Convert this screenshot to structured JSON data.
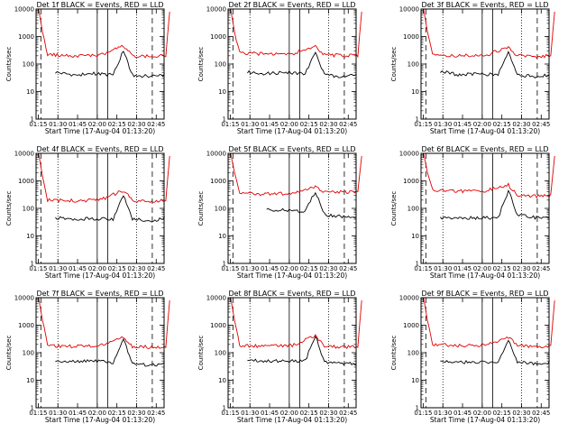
{
  "chart_data": {
    "type": "line",
    "layout": "3x3 panels",
    "shared": {
      "xlabel": "Start Time (17-Aug-04 01:13:20)",
      "ylabel": "Counts/sec",
      "x_ticks": [
        "01:15",
        "01:30",
        "01:45",
        "02:00",
        "02:15",
        "02:30",
        "02:45"
      ],
      "x_range": [
        "01:13:20",
        "02:51:00"
      ],
      "y_ticks": [
        "1",
        "10",
        "100",
        "1000",
        "10000"
      ],
      "y_range": [
        1,
        10000
      ],
      "y_scale": "log",
      "colors": {
        "events": "#000000",
        "lld": "#e00000"
      },
      "dotted_lines_at": [
        "01:30",
        "02:30"
      ],
      "dashed_lines_at": [
        "01:17",
        "02:42"
      ],
      "solid_lines_at": [
        "02:00",
        "02:08"
      ]
    },
    "panels": [
      {
        "title": "Det 1f BLACK = Events, RED = LLD",
        "series": [
          {
            "name": "Events",
            "values": [
              [
                1.5,
                50
              ],
              [
                3,
                40
              ],
              [
                4.5,
                45
              ],
              [
                6,
                40
              ],
              [
                6.8,
                300
              ],
              [
                7.5,
                40
              ],
              [
                9,
                35
              ],
              [
                10,
                40
              ]
            ]
          },
          {
            "name": "LLD",
            "values": [
              [
                0.2,
                10000
              ],
              [
                0.5,
                1500
              ],
              [
                0.9,
                220
              ],
              [
                3,
                200
              ],
              [
                5,
                210
              ],
              [
                6.8,
                450
              ],
              [
                7.5,
                200
              ],
              [
                9,
                190
              ],
              [
                10.1,
                200
              ],
              [
                10.4,
                8000
              ]
            ]
          }
        ]
      },
      {
        "title": "Det 2f BLACK = Events, RED = LLD",
        "series": [
          {
            "name": "Events",
            "values": [
              [
                1.5,
                50
              ],
              [
                3,
                45
              ],
              [
                4.5,
                50
              ],
              [
                6,
                45
              ],
              [
                6.8,
                250
              ],
              [
                7.5,
                40
              ],
              [
                9,
                35
              ],
              [
                10,
                40
              ]
            ]
          },
          {
            "name": "LLD",
            "values": [
              [
                0.2,
                10000
              ],
              [
                0.5,
                1500
              ],
              [
                0.9,
                250
              ],
              [
                3,
                230
              ],
              [
                5,
                240
              ],
              [
                6.8,
                420
              ],
              [
                7.5,
                220
              ],
              [
                9,
                200
              ],
              [
                10.1,
                210
              ],
              [
                10.4,
                8000
              ]
            ]
          }
        ]
      },
      {
        "title": "Det 3f BLACK = Events, RED = LLD",
        "series": [
          {
            "name": "Events",
            "values": [
              [
                1.5,
                55
              ],
              [
                3,
                40
              ],
              [
                4.5,
                45
              ],
              [
                6,
                40
              ],
              [
                6.8,
                250
              ],
              [
                7.5,
                40
              ],
              [
                9,
                35
              ],
              [
                10,
                40
              ]
            ]
          },
          {
            "name": "LLD",
            "values": [
              [
                0.2,
                10000
              ],
              [
                0.5,
                1500
              ],
              [
                0.9,
                220
              ],
              [
                3,
                200
              ],
              [
                5,
                210
              ],
              [
                6.8,
                400
              ],
              [
                7.5,
                200
              ],
              [
                9,
                190
              ],
              [
                10.1,
                200
              ],
              [
                10.4,
                8000
              ]
            ]
          }
        ]
      },
      {
        "title": "Det 4f BLACK = Events, RED = LLD",
        "series": [
          {
            "name": "Events",
            "values": [
              [
                1.5,
                45
              ],
              [
                3,
                40
              ],
              [
                4.5,
                42
              ],
              [
                6,
                40
              ],
              [
                6.8,
                300
              ],
              [
                7.5,
                40
              ],
              [
                9,
                35
              ],
              [
                10,
                45
              ]
            ]
          },
          {
            "name": "LLD",
            "values": [
              [
                0.2,
                10000
              ],
              [
                0.5,
                1500
              ],
              [
                0.9,
                200
              ],
              [
                3,
                190
              ],
              [
                5,
                200
              ],
              [
                6.8,
                450
              ],
              [
                7.5,
                200
              ],
              [
                9,
                180
              ],
              [
                10.1,
                190
              ],
              [
                10.4,
                8000
              ]
            ]
          }
        ]
      },
      {
        "title": "Det 5f BLACK = Events, RED = LLD",
        "series": [
          {
            "name": "Events",
            "values": [
              [
                3,
                90
              ],
              [
                4.5,
                85
              ],
              [
                6,
                80
              ],
              [
                6.8,
                400
              ],
              [
                7.5,
                60
              ],
              [
                9,
                50
              ],
              [
                10,
                50
              ]
            ]
          },
          {
            "name": "LLD",
            "values": [
              [
                0.2,
                10000
              ],
              [
                0.5,
                2000
              ],
              [
                0.9,
                350
              ],
              [
                3,
                330
              ],
              [
                5,
                350
              ],
              [
                6.8,
                600
              ],
              [
                7.5,
                400
              ],
              [
                9,
                380
              ],
              [
                10.1,
                400
              ],
              [
                10.4,
                8000
              ]
            ]
          }
        ]
      },
      {
        "title": "Det 6f BLACK = Events, RED = LLD",
        "series": [
          {
            "name": "Events",
            "values": [
              [
                1.5,
                45
              ],
              [
                3,
                45
              ],
              [
                4.5,
                45
              ],
              [
                6,
                45
              ],
              [
                6.8,
                450
              ],
              [
                7.5,
                60
              ],
              [
                9,
                45
              ],
              [
                10,
                45
              ]
            ]
          },
          {
            "name": "LLD",
            "values": [
              [
                0.2,
                10000
              ],
              [
                0.5,
                2000
              ],
              [
                0.9,
                450
              ],
              [
                3,
                420
              ],
              [
                5,
                430
              ],
              [
                6.8,
                700
              ],
              [
                7.5,
                300
              ],
              [
                9,
                280
              ],
              [
                10.1,
                300
              ],
              [
                10.4,
                8000
              ]
            ]
          }
        ]
      },
      {
        "title": "Det 7f BLACK = Events, RED = LLD",
        "series": [
          {
            "name": "Events",
            "values": [
              [
                1.5,
                45
              ],
              [
                3,
                50
              ],
              [
                4.5,
                50
              ],
              [
                6,
                45
              ],
              [
                6.8,
                300
              ],
              [
                7.5,
                40
              ],
              [
                9,
                35
              ],
              [
                10,
                40
              ]
            ]
          },
          {
            "name": "LLD",
            "values": [
              [
                0.2,
                10000
              ],
              [
                0.5,
                1500
              ],
              [
                0.9,
                180
              ],
              [
                3,
                170
              ],
              [
                5,
                180
              ],
              [
                6.8,
                350
              ],
              [
                7.5,
                170
              ],
              [
                9,
                160
              ],
              [
                10.1,
                170
              ],
              [
                10.4,
                8000
              ]
            ]
          }
        ]
      },
      {
        "title": "Det 8f BLACK = Events, RED = LLD",
        "series": [
          {
            "name": "Events",
            "values": [
              [
                1.5,
                55
              ],
              [
                3,
                50
              ],
              [
                4.5,
                50
              ],
              [
                6,
                50
              ],
              [
                6.8,
                400
              ],
              [
                7.5,
                45
              ],
              [
                9,
                40
              ],
              [
                10,
                40
              ]
            ]
          },
          {
            "name": "LLD",
            "values": [
              [
                0.2,
                10000
              ],
              [
                0.5,
                1500
              ],
              [
                0.9,
                180
              ],
              [
                3,
                170
              ],
              [
                5,
                180
              ],
              [
                6.8,
                420
              ],
              [
                7.5,
                170
              ],
              [
                9,
                160
              ],
              [
                10.1,
                170
              ],
              [
                10.4,
                8000
              ]
            ]
          }
        ]
      },
      {
        "title": "Det 9f BLACK = Events, RED = LLD",
        "series": [
          {
            "name": "Events",
            "values": [
              [
                1.5,
                50
              ],
              [
                3,
                45
              ],
              [
                4.5,
                45
              ],
              [
                6,
                40
              ],
              [
                6.8,
                300
              ],
              [
                7.5,
                45
              ],
              [
                9,
                40
              ],
              [
                10,
                45
              ]
            ]
          },
          {
            "name": "LLD",
            "values": [
              [
                0.2,
                10000
              ],
              [
                0.5,
                1500
              ],
              [
                0.9,
                200
              ],
              [
                3,
                180
              ],
              [
                5,
                190
              ],
              [
                6.8,
                380
              ],
              [
                7.5,
                180
              ],
              [
                9,
                170
              ],
              [
                10.1,
                180
              ],
              [
                10.4,
                8000
              ]
            ]
          }
        ]
      }
    ]
  }
}
